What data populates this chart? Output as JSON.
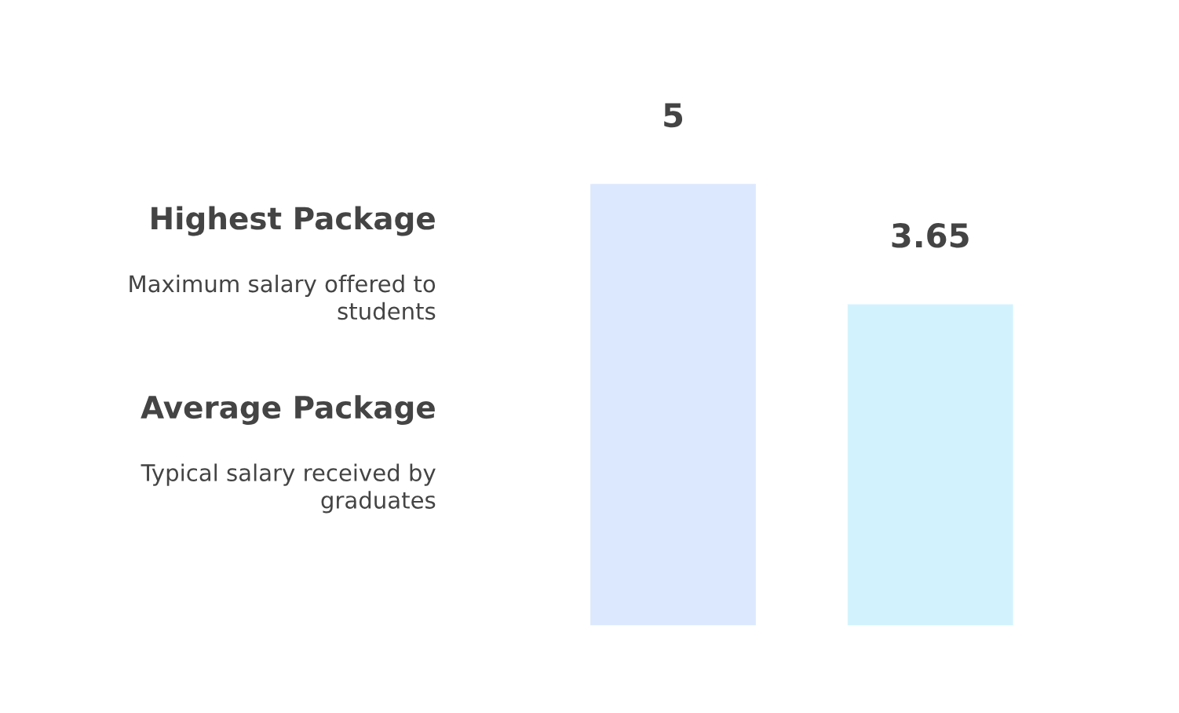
{
  "chart_data": {
    "type": "bar",
    "categories": [
      null,
      null
    ],
    "values": [
      5,
      3.65
    ],
    "colors": [
      "#dce8fe",
      "#d2f3fe"
    ],
    "data_labels": true,
    "grid": false,
    "annotations": [
      "Highest Package",
      "Maximum salary offered to\nstudents",
      "Average Package",
      "Typical salary received by\ngraduates"
    ]
  }
}
